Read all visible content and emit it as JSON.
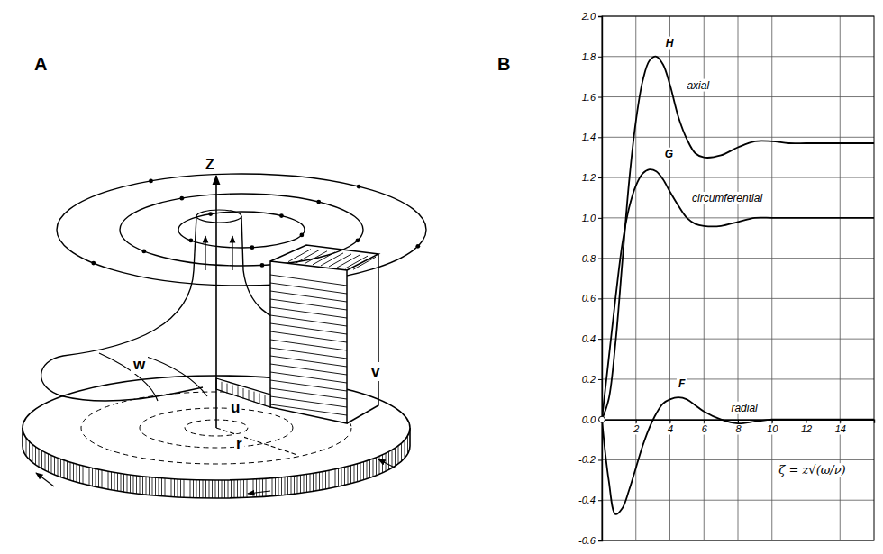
{
  "figure": {
    "panel_labels": [
      "A",
      "B"
    ]
  },
  "diagram": {
    "axis_label": "Z",
    "labels": [
      "w",
      "u",
      "v",
      "r"
    ]
  },
  "chart_data": {
    "type": "line",
    "x_label": "ζ = z√(ω/ν)",
    "xlim": [
      0,
      16
    ],
    "xticks": [
      2,
      4,
      6,
      8,
      10,
      12,
      14
    ],
    "ylim": [
      -0.6,
      2.0
    ],
    "yticks": [
      {
        "value": -0.6,
        "label": "-0.6"
      },
      {
        "value": -0.4,
        "label": "-0.4"
      },
      {
        "value": -0.2,
        "label": "-0.2"
      },
      {
        "value": 0,
        "label": "0.0"
      },
      0.2,
      0.4,
      0.6,
      0.8,
      {
        "value": 1,
        "label": "1.0"
      },
      1.2,
      1.4,
      1.6,
      1.8,
      {
        "value": 2,
        "label": "2.0"
      }
    ],
    "grid": true,
    "x": [
      0,
      0.4,
      0.8,
      1.2,
      1.6,
      2.0,
      2.4,
      2.8,
      3.2,
      3.6,
      4.0,
      4.5,
      5,
      5.5,
      6,
      7,
      8,
      9,
      10,
      11,
      12,
      13,
      14,
      15,
      16
    ],
    "annotations": [
      "axial",
      "circumferential",
      "radial"
    ],
    "series": [
      {
        "name": "H",
        "color": "#000000",
        "values": [
          0,
          0.1,
          0.38,
          0.78,
          1.18,
          1.48,
          1.68,
          1.78,
          1.8,
          1.76,
          1.66,
          1.5,
          1.39,
          1.32,
          1.3,
          1.31,
          1.35,
          1.38,
          1.38,
          1.37,
          1.37,
          1.37,
          1.37,
          1.37,
          1.37
        ]
      },
      {
        "name": "G",
        "color": "#000000",
        "values": [
          0,
          0.3,
          0.6,
          0.87,
          1.05,
          1.16,
          1.22,
          1.24,
          1.23,
          1.19,
          1.13,
          1.06,
          1.0,
          0.97,
          0.96,
          0.96,
          0.98,
          1.0,
          1.0,
          1.0,
          1.0,
          1.0,
          1.0,
          1.0,
          1.0
        ]
      },
      {
        "name": "F",
        "color": "#000000",
        "values": [
          0,
          -0.3,
          -0.47,
          -0.44,
          -0.35,
          -0.24,
          -0.13,
          -0.04,
          0.03,
          0.08,
          0.1,
          0.11,
          0.1,
          0.07,
          0.04,
          0,
          -0.02,
          -0.01,
          0,
          0,
          0,
          0,
          0,
          0,
          0
        ]
      }
    ]
  }
}
